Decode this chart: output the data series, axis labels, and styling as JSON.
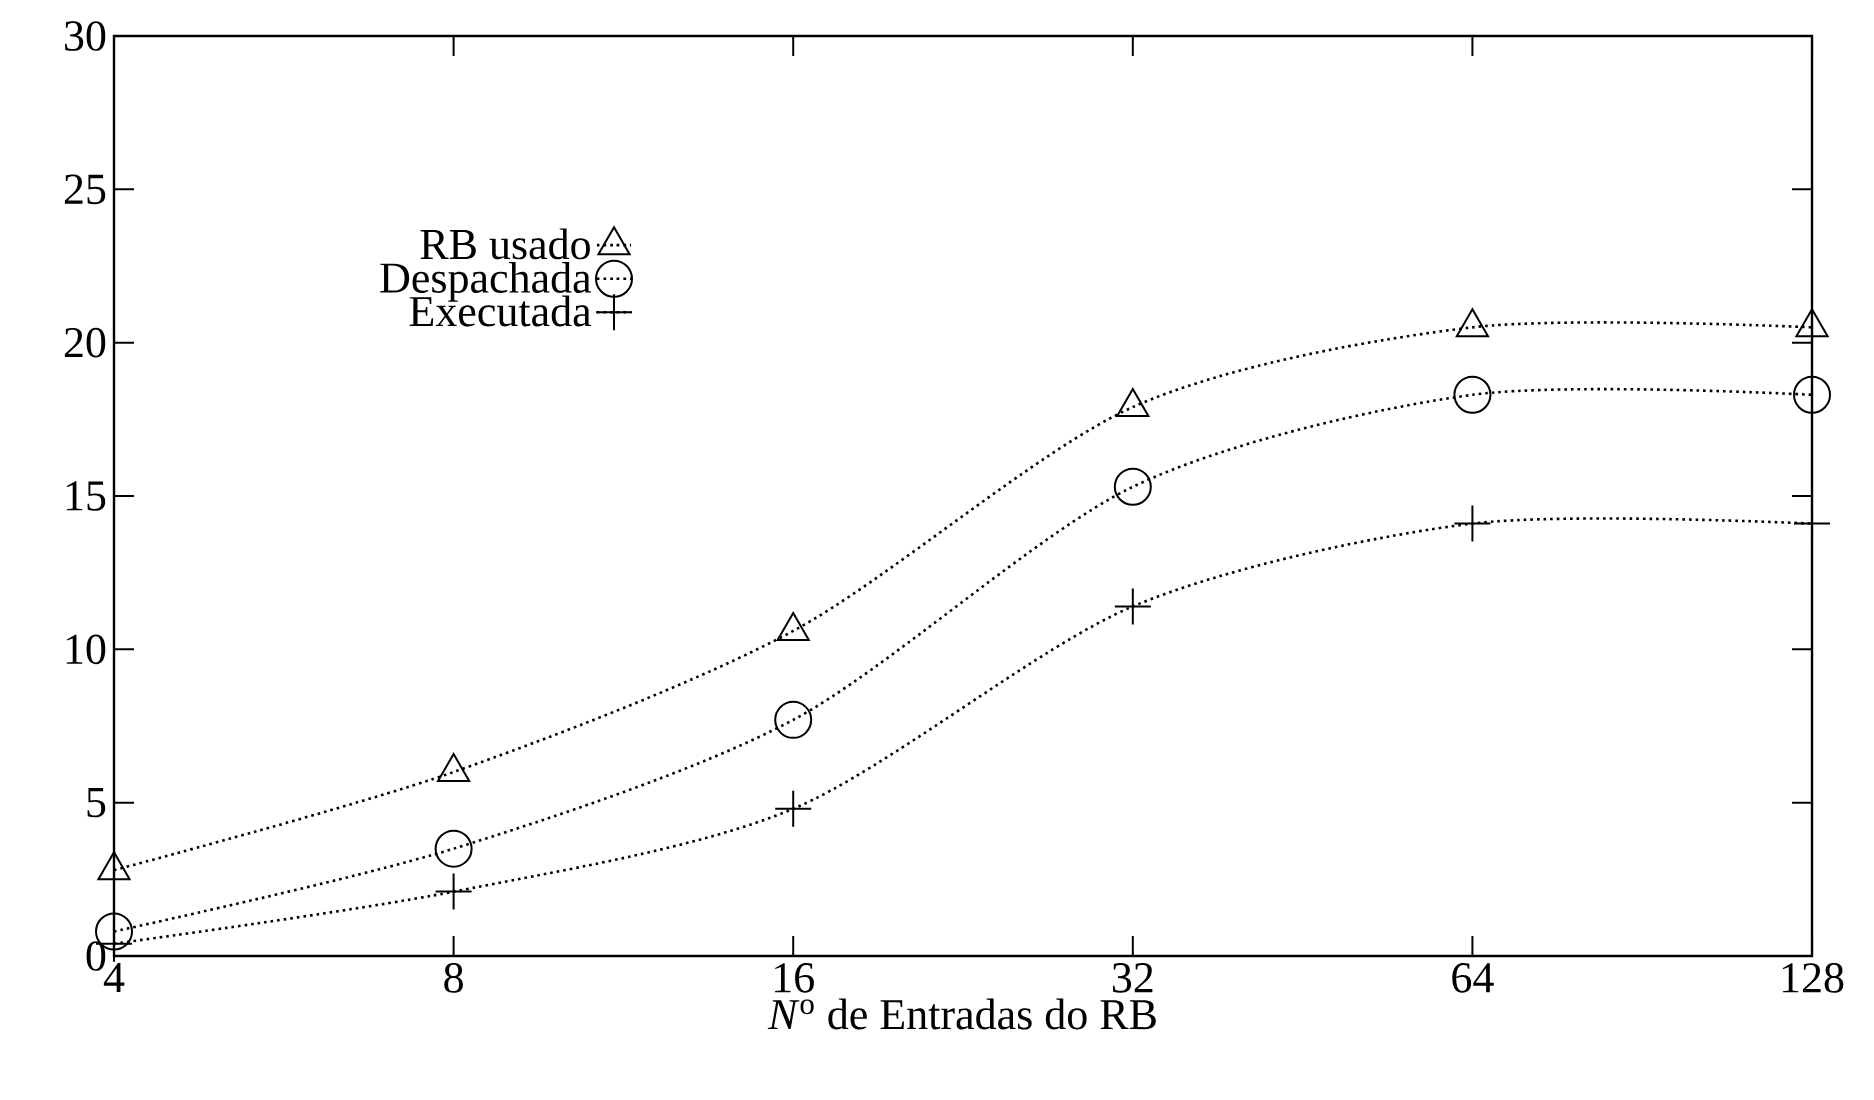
{
  "chart_data": {
    "type": "line",
    "xlabel": "*N*$^{o}$ de Entradas do RB",
    "categories": [
      "4",
      "8",
      "16",
      "32",
      "64",
      "128"
    ],
    "series": [
      {
        "name": "RB usado",
        "color": "#000000",
        "marker": "triangle",
        "values": [
          2.8,
          6.0,
          10.6,
          17.9,
          20.5,
          20.5
        ]
      },
      {
        "name": "Despachada",
        "color": "#000000",
        "marker": "circle",
        "values": [
          0.8,
          3.5,
          7.7,
          15.3,
          18.3,
          18.3
        ]
      },
      {
        "name": "Executada",
        "color": "#000000",
        "marker": "cross",
        "values": [
          0.4,
          2.1,
          4.8,
          11.4,
          14.1,
          14.1
        ]
      }
    ],
    "ylim": [
      0,
      30
    ],
    "yticks": [
      0,
      5,
      10,
      15,
      20,
      25,
      30
    ],
    "line_style": "dotted",
    "legend": "top left",
    "grid": false
  }
}
